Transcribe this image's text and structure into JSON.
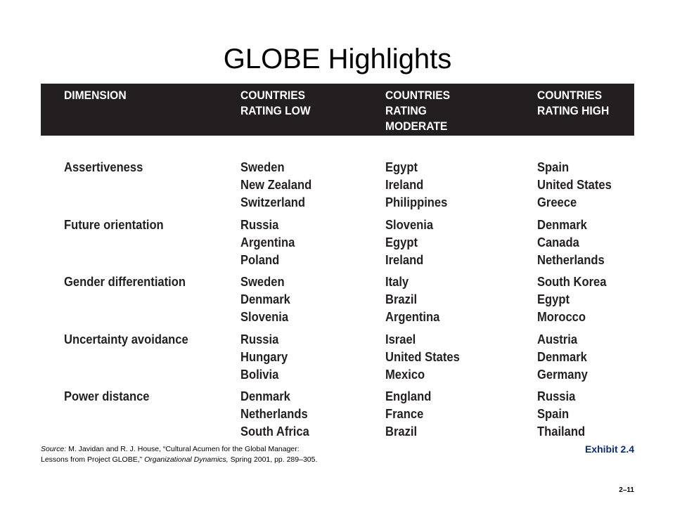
{
  "title": "GLOBE Highlights",
  "header": {
    "dimension": [
      "DIMENSION"
    ],
    "low": [
      "COUNTRIES",
      "RATING LOW"
    ],
    "moderate": [
      "COUNTRIES",
      "RATING",
      "MODERATE"
    ],
    "high": [
      "COUNTRIES",
      "RATING HIGH"
    ]
  },
  "rows": [
    {
      "dimension": "Assertiveness",
      "low": [
        "Sweden",
        "New Zealand",
        "Switzerland"
      ],
      "moderate": [
        "Egypt",
        "Ireland",
        "Philippines"
      ],
      "high": [
        "Spain",
        "United States",
        "Greece"
      ]
    },
    {
      "dimension": "Future orientation",
      "low": [
        "Russia",
        "Argentina",
        "Poland"
      ],
      "moderate": [
        "Slovenia",
        "Egypt",
        "Ireland"
      ],
      "high": [
        "Denmark",
        "Canada",
        "Netherlands"
      ]
    },
    {
      "dimension": "Gender differentiation",
      "low": [
        "Sweden",
        "Denmark",
        "Slovenia"
      ],
      "moderate": [
        "Italy",
        "Brazil",
        "Argentina"
      ],
      "high": [
        "South Korea",
        "Egypt",
        "Morocco"
      ]
    },
    {
      "dimension": "Uncertainty avoidance",
      "low": [
        "Russia",
        "Hungary",
        "Bolivia"
      ],
      "moderate": [
        "Israel",
        "United States",
        "Mexico"
      ],
      "high": [
        "Austria",
        "Denmark",
        "Germany"
      ]
    },
    {
      "dimension": "Power distance",
      "low": [
        "Denmark",
        "Netherlands",
        "South Africa"
      ],
      "moderate": [
        "England",
        "France",
        "Brazil"
      ],
      "high": [
        "Russia",
        "Spain",
        "Thailand"
      ]
    }
  ],
  "source": {
    "label": "Source:",
    "line1_rest": " M. Javidan and R. J. House, “Cultural Acumen for the Global Manager:",
    "line2_plain": "Lessons from Project GLOBE,” ",
    "line2_italic": "Organizational Dynamics,",
    "line2_end": " Spring 2001, pp. 289–305."
  },
  "exhibit": "Exhibit 2.4",
  "page_number": "2–11",
  "colors": {
    "header_bg": "#231f20",
    "header_text": "#ffffff",
    "body_text": "#231f20",
    "exhibit_text": "#0b2a7a"
  }
}
